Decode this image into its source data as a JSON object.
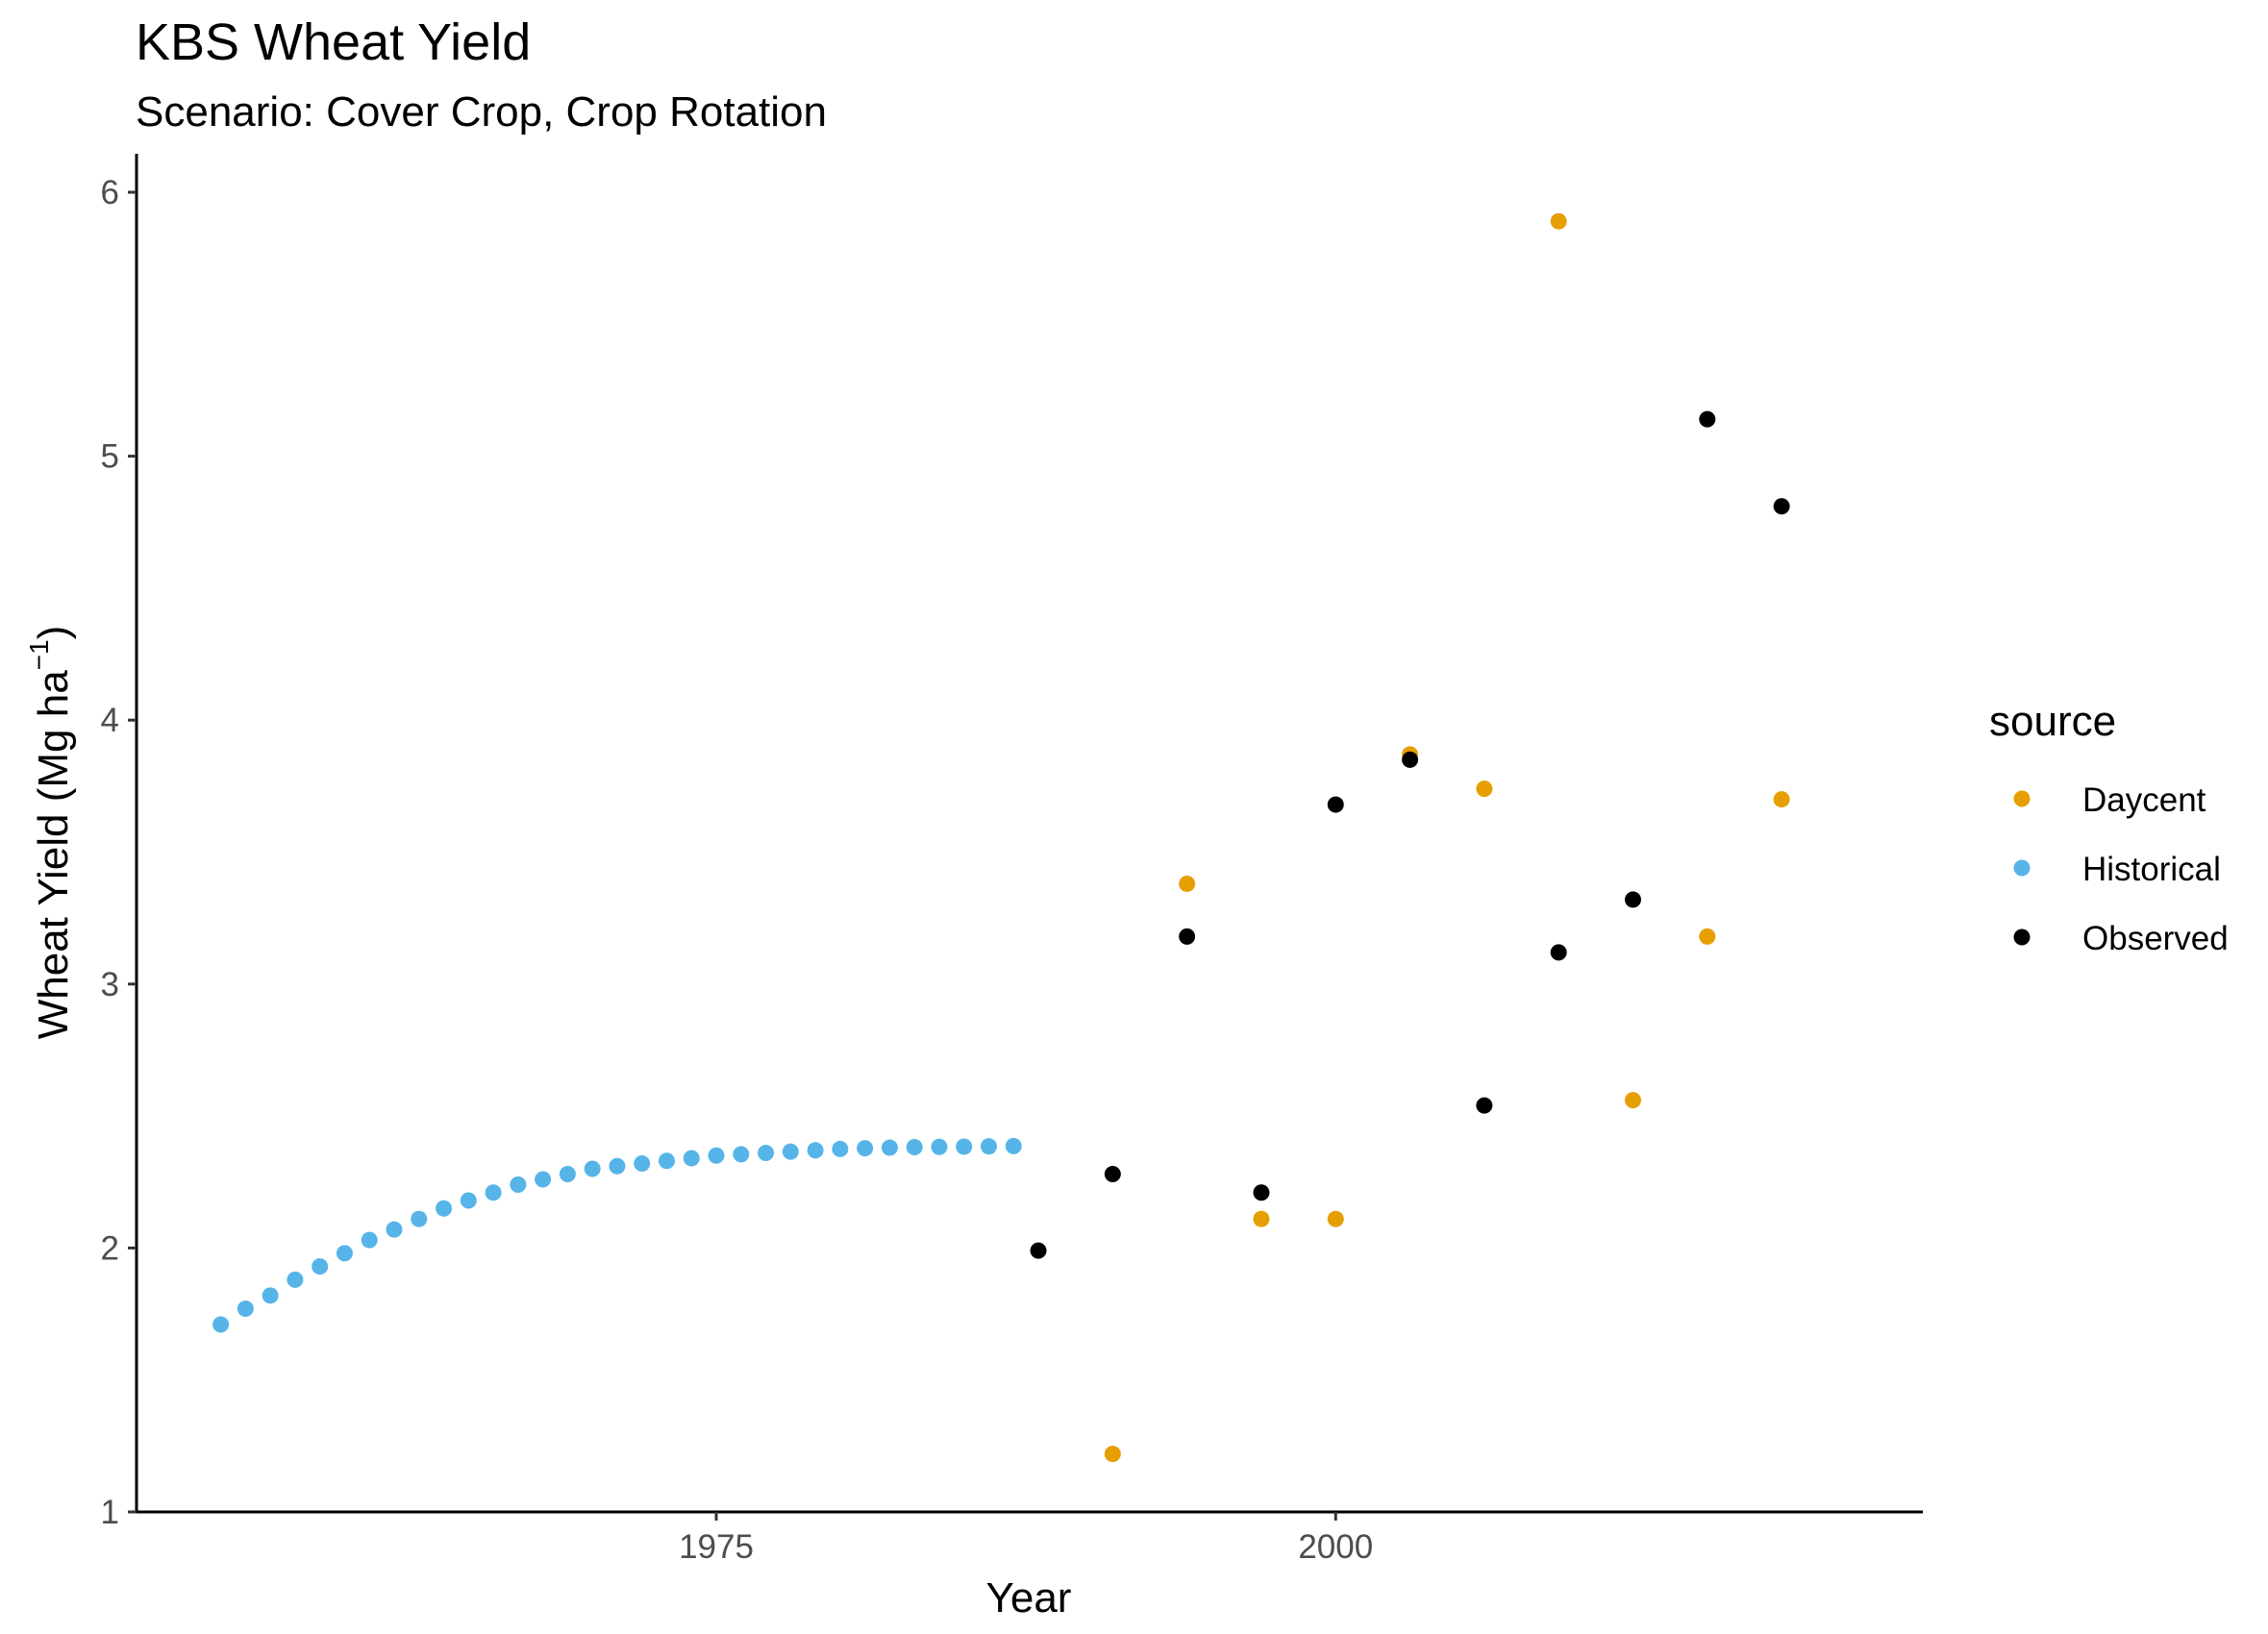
{
  "chart_data": {
    "type": "scatter",
    "title": "KBS Wheat Yield",
    "subtitle": "Scenario: Cover Crop, Crop Rotation",
    "xlabel": "Year",
    "ylabel": "Wheat Yield (Mg ha",
    "ylabel_sup": "−1",
    "ylabel_close": ")",
    "xlim": [
      1951.6,
      2023.7
    ],
    "ylim": [
      1,
      6
    ],
    "x_ticks": [
      1975,
      2000
    ],
    "y_ticks": [
      1,
      2,
      3,
      4,
      5,
      6
    ],
    "grid": false,
    "legend": {
      "title": "source",
      "position": "right"
    },
    "series": [
      {
        "name": "Daycent",
        "color": "#E69F00",
        "points": [
          {
            "x": 1991,
            "y": 1.22
          },
          {
            "x": 1994,
            "y": 3.38
          },
          {
            "x": 1997,
            "y": 2.11
          },
          {
            "x": 2000,
            "y": 2.11
          },
          {
            "x": 2003,
            "y": 3.87
          },
          {
            "x": 2006,
            "y": 3.74
          },
          {
            "x": 2009,
            "y": 5.89
          },
          {
            "x": 2012,
            "y": 2.56
          },
          {
            "x": 2015,
            "y": 3.18
          },
          {
            "x": 2018,
            "y": 3.7
          }
        ]
      },
      {
        "name": "Historical",
        "color": "#56B4E9",
        "points": [
          {
            "x": 1955,
            "y": 1.71
          },
          {
            "x": 1956,
            "y": 1.77
          },
          {
            "x": 1957,
            "y": 1.82
          },
          {
            "x": 1958,
            "y": 1.88
          },
          {
            "x": 1959,
            "y": 1.93
          },
          {
            "x": 1960,
            "y": 1.98
          },
          {
            "x": 1961,
            "y": 2.03
          },
          {
            "x": 1962,
            "y": 2.07
          },
          {
            "x": 1963,
            "y": 2.11
          },
          {
            "x": 1964,
            "y": 2.15
          },
          {
            "x": 1965,
            "y": 2.18
          },
          {
            "x": 1966,
            "y": 2.21
          },
          {
            "x": 1967,
            "y": 2.24
          },
          {
            "x": 1968,
            "y": 2.26
          },
          {
            "x": 1969,
            "y": 2.28
          },
          {
            "x": 1970,
            "y": 2.3
          },
          {
            "x": 1971,
            "y": 2.31
          },
          {
            "x": 1972,
            "y": 2.32
          },
          {
            "x": 1973,
            "y": 2.33
          },
          {
            "x": 1974,
            "y": 2.34
          },
          {
            "x": 1975,
            "y": 2.35
          },
          {
            "x": 1976,
            "y": 2.355
          },
          {
            "x": 1977,
            "y": 2.36
          },
          {
            "x": 1978,
            "y": 2.365
          },
          {
            "x": 1979,
            "y": 2.37
          },
          {
            "x": 1980,
            "y": 2.375
          },
          {
            "x": 1981,
            "y": 2.378
          },
          {
            "x": 1982,
            "y": 2.38
          },
          {
            "x": 1983,
            "y": 2.382
          },
          {
            "x": 1984,
            "y": 2.383
          },
          {
            "x": 1985,
            "y": 2.384
          },
          {
            "x": 1986,
            "y": 2.385
          },
          {
            "x": 1987,
            "y": 2.386
          }
        ]
      },
      {
        "name": "Observed",
        "color": "#000000",
        "points": [
          {
            "x": 1988,
            "y": 1.99
          },
          {
            "x": 1991,
            "y": 2.28
          },
          {
            "x": 1994,
            "y": 3.18
          },
          {
            "x": 1997,
            "y": 2.21
          },
          {
            "x": 2000,
            "y": 3.68
          },
          {
            "x": 2003,
            "y": 3.85
          },
          {
            "x": 2006,
            "y": 2.54
          },
          {
            "x": 2009,
            "y": 3.12
          },
          {
            "x": 2012,
            "y": 3.32
          },
          {
            "x": 2015,
            "y": 5.14
          },
          {
            "x": 2018,
            "y": 4.81
          }
        ]
      }
    ]
  }
}
